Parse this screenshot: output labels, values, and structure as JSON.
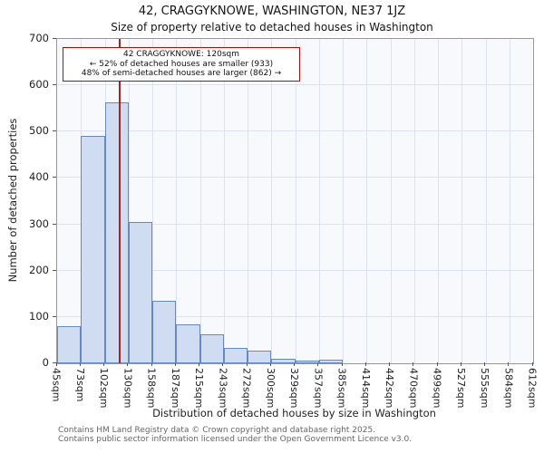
{
  "chart_data": {
    "type": "bar",
    "title": "42, CRAGGYKNOWE, WASHINGTON, NE37 1JZ",
    "subtitle": "Size of property relative to detached houses in Washington",
    "xlabel": "Distribution of detached houses by size in Washington",
    "ylabel": "Number of detached properties",
    "ylim": [
      0,
      700
    ],
    "yticks": [
      0,
      100,
      200,
      300,
      400,
      500,
      600,
      700
    ],
    "bin_edges": [
      45,
      73,
      102,
      130,
      158,
      187,
      215,
      243,
      272,
      300,
      329,
      357,
      385,
      414,
      442,
      470,
      499,
      527,
      555,
      584,
      612
    ],
    "tick_labels": [
      "45sqm",
      "73sqm",
      "102sqm",
      "130sqm",
      "158sqm",
      "187sqm",
      "215sqm",
      "243sqm",
      "272sqm",
      "300sqm",
      "329sqm",
      "357sqm",
      "385sqm",
      "414sqm",
      "442sqm",
      "470sqm",
      "499sqm",
      "527sqm",
      "555sqm",
      "584sqm",
      "612sqm"
    ],
    "values": [
      80,
      490,
      563,
      305,
      135,
      85,
      62,
      33,
      27,
      10,
      5,
      7,
      0,
      0,
      0,
      0,
      0,
      0,
      0,
      0
    ],
    "marker_value": 120,
    "grid": true,
    "bar_fill": "#cfdcf1",
    "bar_border": "#6889bd",
    "marker_color": "#a82222",
    "annotation_border": "#cc0000"
  },
  "annotation": {
    "line1": "42 CRAGGYKNOWE: 120sqm",
    "line2": "← 52% of detached houses are smaller (933)",
    "line3": "48% of semi-detached houses are larger (862) →"
  },
  "footer": {
    "line1": "Contains HM Land Registry data © Crown copyright and database right 2025.",
    "line2": "Contains public sector information licensed under the Open Government Licence v3.0."
  }
}
